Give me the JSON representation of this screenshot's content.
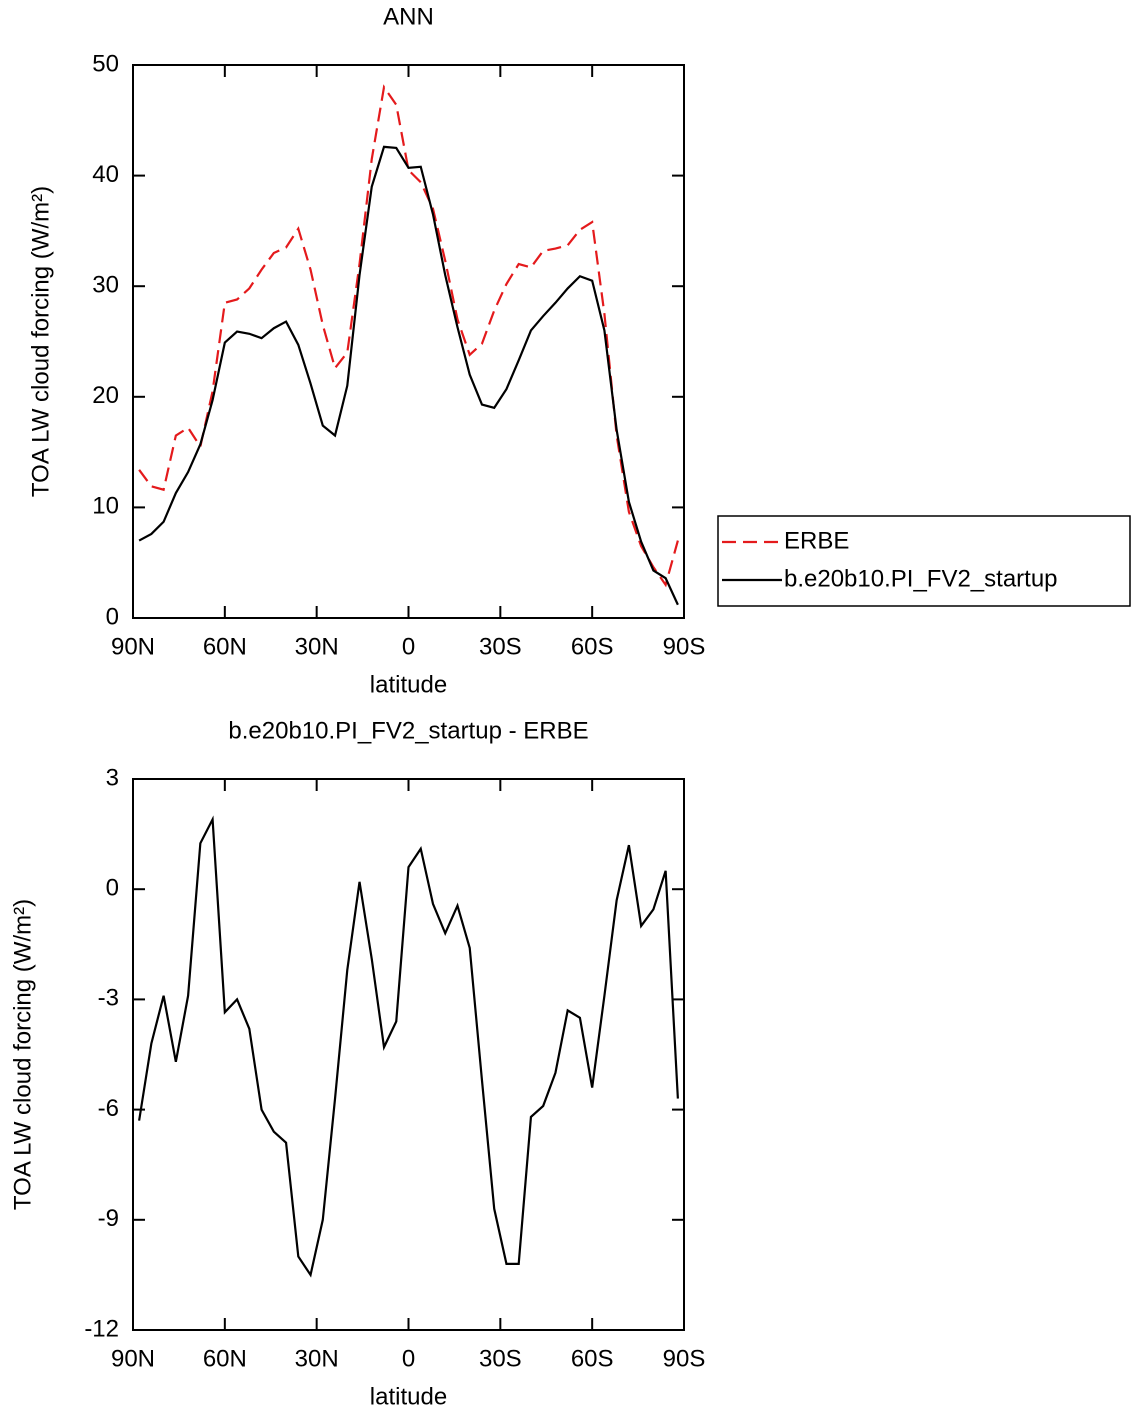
{
  "chart_data": [
    {
      "type": "line",
      "title": "ANN",
      "x_label": "latitude",
      "y_label": "TOA LW cloud forcing (W/m²)",
      "x": [
        88,
        84,
        80,
        76,
        72,
        68,
        64,
        60,
        56,
        52,
        48,
        44,
        40,
        36,
        32,
        28,
        24,
        20,
        16,
        12,
        8,
        4,
        0,
        -4,
        -8,
        -12,
        -16,
        -20,
        -24,
        -28,
        -32,
        -36,
        -40,
        -44,
        -48,
        -52,
        -56,
        -60,
        -64,
        -68,
        -72,
        -76,
        -80,
        -84,
        -88
      ],
      "series": [
        {
          "name": "ERBE",
          "color": "#e41a1c",
          "dash": true,
          "values": [
            13.4,
            11.9,
            11.6,
            16.5,
            17.2,
            15.5,
            20.5,
            28.5,
            28.8,
            29.8,
            31.5,
            33.0,
            33.5,
            35.2,
            31.5,
            26.5,
            22.6,
            24,
            32,
            41.5,
            48,
            46.4,
            40.5,
            39.4,
            37,
            32.3,
            27,
            23.8,
            24.8,
            27.8,
            30.2,
            32,
            31.7,
            33.2,
            33.4,
            33.7,
            35.1,
            35.8,
            27.5,
            16.5,
            9.6,
            6.5,
            4.6,
            3,
            7
          ]
        },
        {
          "name": "b.e20b10.PI_FV2_startup",
          "color": "#000000",
          "dash": false,
          "values": [
            7.0,
            7.6,
            8.7,
            11.3,
            13.2,
            15.7,
            19.7,
            24.9,
            25.9,
            25.7,
            25.3,
            26.2,
            26.8,
            24.7,
            21.2,
            17.4,
            16.5,
            21,
            31,
            39,
            42.6,
            42.5,
            40.7,
            40.8,
            36.5,
            31,
            26.3,
            22,
            19.3,
            19,
            20.7,
            23.3,
            26,
            27.3,
            28.5,
            29.8,
            30.9,
            30.5,
            26,
            17,
            10.5,
            6.9,
            4.3,
            3.6,
            1.2
          ]
        }
      ],
      "xlim": [
        90,
        -90
      ],
      "xticks": [
        {
          "value": 90,
          "label": "90N"
        },
        {
          "value": 60,
          "label": "60N"
        },
        {
          "value": 30,
          "label": "30N"
        },
        0,
        {
          "value": -30,
          "label": "30S"
        },
        {
          "value": -60,
          "label": "60S"
        },
        {
          "value": -90,
          "label": "90S"
        }
      ],
      "ylim": [
        0,
        50
      ],
      "yticks": [
        0,
        10,
        20,
        30,
        40,
        50
      ],
      "legend": "right"
    },
    {
      "type": "line",
      "title": "b.e20b10.PI_FV2_startup - ERBE",
      "x_label": "latitude",
      "y_label": "TOA LW cloud forcing (W/m²)",
      "x": [
        88,
        84,
        80,
        76,
        72,
        68,
        64,
        60,
        56,
        52,
        48,
        44,
        40,
        36,
        32,
        28,
        24,
        20,
        16,
        12,
        8,
        4,
        0,
        -4,
        -8,
        -12,
        -16,
        -20,
        -24,
        -28,
        -32,
        -36,
        -40,
        -44,
        -48,
        -52,
        -56,
        -60,
        -64,
        -68,
        -72,
        -76,
        -80,
        -84,
        -88
      ],
      "values": [
        -6.3,
        -4.2,
        -2.9,
        -4.7,
        -2.9,
        1.25,
        1.9,
        -3.35,
        -3.0,
        -3.8,
        -6.0,
        -6.6,
        -6.9,
        -10,
        -10.5,
        -9,
        -5.7,
        -2.2,
        0.2,
        -1.9,
        -4.3,
        -3.6,
        0.6,
        1.1,
        -0.4,
        -1.2,
        -0.45,
        -1.6,
        -5.2,
        -8.7,
        -10.2,
        -10.2,
        -6.2,
        -5.9,
        -5.0,
        -3.3,
        -3.5,
        -5.4,
        -2.9,
        -0.3,
        1.2,
        -1.0,
        -0.55,
        0.5,
        -5.7
      ],
      "color": "#000000",
      "xlim": [
        90,
        -90
      ],
      "xticks": [
        {
          "value": 90,
          "label": "90N"
        },
        {
          "value": 60,
          "label": "60N"
        },
        {
          "value": 30,
          "label": "30N"
        },
        0,
        {
          "value": -30,
          "label": "30S"
        },
        {
          "value": -60,
          "label": "60S"
        },
        {
          "value": -90,
          "label": "90S"
        }
      ],
      "ylim": [
        -12,
        3
      ],
      "yticks": [
        -12,
        -9,
        -6,
        -3,
        0,
        3
      ]
    }
  ]
}
